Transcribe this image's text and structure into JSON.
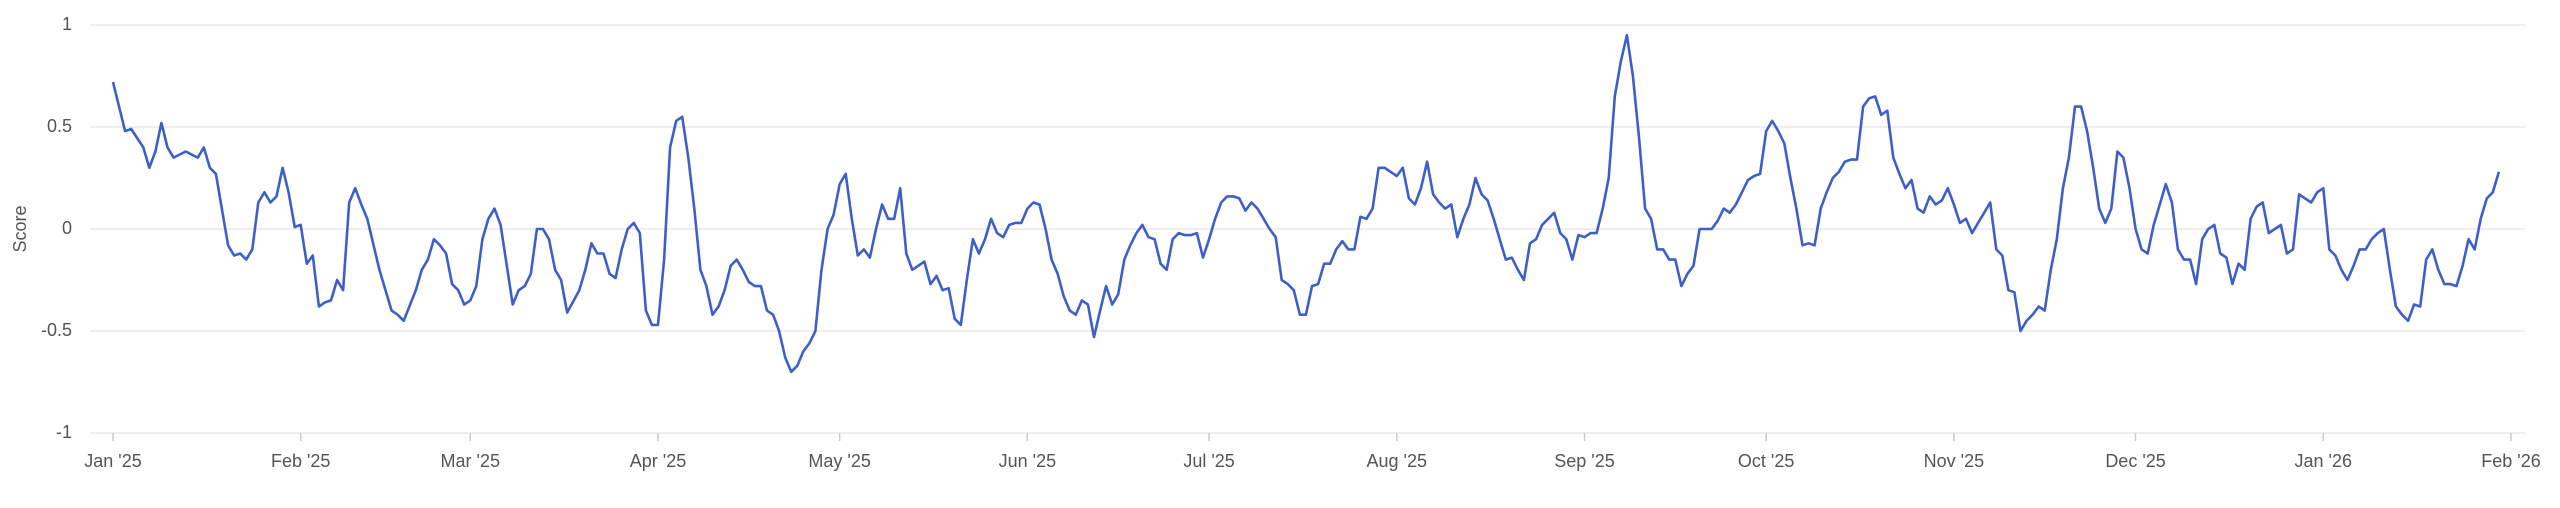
{
  "chart_data": {
    "type": "line",
    "y_label": "Score",
    "color": "#3f5fc8",
    "grid": true,
    "xlim": [
      0,
      396
    ],
    "ylim": [
      -1,
      1
    ],
    "yticks": [
      1,
      0.5,
      0,
      -0.5,
      -1
    ],
    "xticks": [
      {
        "value": 0,
        "label": "Jan '25"
      },
      {
        "value": 31,
        "label": "Feb '25"
      },
      {
        "value": 59,
        "label": "Mar '25"
      },
      {
        "value": 90,
        "label": "Apr '25"
      },
      {
        "value": 120,
        "label": "May '25"
      },
      {
        "value": 151,
        "label": "Jun '25"
      },
      {
        "value": 181,
        "label": "Jul '25"
      },
      {
        "value": 212,
        "label": "Aug '25"
      },
      {
        "value": 243,
        "label": "Sep '25"
      },
      {
        "value": 273,
        "label": "Oct '25"
      },
      {
        "value": 304,
        "label": "Nov '25"
      },
      {
        "value": 334,
        "label": "Dec '25"
      },
      {
        "value": 365,
        "label": "Jan '26"
      },
      {
        "value": 396,
        "label": "Feb '26"
      }
    ],
    "x": [
      0,
      2,
      3,
      5,
      6,
      7,
      8,
      9,
      10,
      12,
      14,
      15,
      16,
      17,
      19,
      20,
      21,
      22,
      23,
      24,
      25,
      26,
      27,
      28,
      29,
      30,
      31,
      32,
      33,
      34,
      35,
      36,
      37,
      38,
      39,
      40,
      41,
      42,
      44,
      46,
      47,
      48,
      50,
      51,
      52,
      53,
      54,
      55,
      56,
      57,
      58,
      59,
      60,
      61,
      62,
      63,
      64,
      66,
      67,
      68,
      69,
      70,
      71,
      72,
      73,
      74,
      75,
      77,
      78,
      79,
      80,
      81,
      82,
      83,
      84,
      85,
      86,
      87,
      88,
      89,
      90,
      91,
      92,
      93,
      94,
      95,
      96,
      97,
      98,
      99,
      100,
      101,
      102,
      103,
      104,
      105,
      106,
      107,
      108,
      109,
      110,
      111,
      112,
      113,
      114,
      115,
      116,
      117,
      118,
      119,
      120,
      121,
      122,
      123,
      124,
      125,
      126,
      127,
      128,
      129,
      130,
      131,
      132,
      133,
      134,
      135,
      136,
      137,
      138,
      139,
      140,
      141,
      142,
      143,
      144,
      145,
      146,
      147,
      148,
      149,
      150,
      151,
      152,
      153,
      154,
      155,
      156,
      157,
      158,
      159,
      160,
      161,
      162,
      163,
      164,
      165,
      166,
      167,
      168,
      169,
      170,
      171,
      172,
      173,
      174,
      175,
      176,
      177,
      178,
      179,
      180,
      181,
      182,
      183,
      184,
      185,
      186,
      187,
      188,
      189,
      190,
      191,
      192,
      193,
      194,
      195,
      196,
      197,
      198,
      199,
      200,
      201,
      202,
      203,
      204,
      205,
      206,
      207,
      208,
      209,
      210,
      211,
      212,
      213,
      214,
      215,
      216,
      217,
      218,
      219,
      220,
      221,
      222,
      223,
      224,
      225,
      226,
      227,
      228,
      229,
      230,
      231,
      232,
      233,
      234,
      235,
      236,
      237,
      238,
      239,
      240,
      241,
      242,
      243,
      244,
      245,
      246,
      247,
      248,
      249,
      250,
      251,
      252,
      253,
      254,
      255,
      256,
      257,
      258,
      259,
      260,
      261,
      262,
      263,
      264,
      265,
      266,
      267,
      268,
      269,
      270,
      271,
      272,
      273,
      274,
      275,
      276,
      277,
      278,
      279,
      280,
      281,
      282,
      283,
      284,
      285,
      286,
      287,
      288,
      289,
      290,
      291,
      292,
      293,
      294,
      295,
      296,
      297,
      298,
      299,
      300,
      301,
      302,
      303,
      304,
      305,
      306,
      307,
      308,
      309,
      310,
      311,
      312,
      313,
      314,
      315,
      316,
      317,
      318,
      319,
      320,
      321,
      322,
      323,
      324,
      325,
      326,
      327,
      328,
      329,
      330,
      331,
      332,
      333,
      334,
      335,
      336,
      337,
      338,
      339,
      340,
      341,
      342,
      343,
      344,
      345,
      346,
      347,
      348,
      349,
      350,
      351,
      352,
      353,
      354,
      355,
      356,
      357,
      358,
      359,
      360,
      361,
      362,
      363,
      364,
      365,
      366,
      367,
      368,
      369,
      370,
      371,
      372,
      373,
      374,
      375,
      376,
      377,
      378,
      379,
      380,
      381,
      382,
      383,
      384,
      385,
      386,
      387,
      388,
      389,
      390,
      391,
      392,
      393,
      394
    ],
    "values": [
      0.72,
      0.48,
      0.49,
      0.4,
      0.3,
      0.38,
      0.52,
      0.4,
      0.35,
      0.38,
      0.35,
      0.4,
      0.3,
      0.27,
      -0.08,
      -0.13,
      -0.12,
      -0.15,
      -0.1,
      0.13,
      0.18,
      0.13,
      0.16,
      0.3,
      0.18,
      0.01,
      0.02,
      -0.17,
      -0.13,
      -0.38,
      -0.36,
      -0.35,
      -0.25,
      -0.3,
      0.13,
      0.2,
      0.12,
      0.05,
      -0.2,
      -0.4,
      -0.42,
      -0.45,
      -0.3,
      -0.2,
      -0.15,
      -0.05,
      -0.08,
      -0.12,
      -0.27,
      -0.3,
      -0.37,
      -0.35,
      -0.28,
      -0.05,
      0.05,
      0.1,
      0.02,
      -0.37,
      -0.3,
      -0.28,
      -0.22,
      0,
      0,
      -0.05,
      -0.2,
      -0.25,
      -0.41,
      -0.3,
      -0.2,
      -0.07,
      -0.12,
      -0.12,
      -0.22,
      -0.24,
      -0.1,
      0,
      0.03,
      -0.02,
      -0.4,
      -0.47,
      -0.47,
      -0.15,
      0.4,
      0.53,
      0.55,
      0.35,
      0.1,
      -0.2,
      -0.28,
      -0.42,
      -0.38,
      -0.3,
      -0.18,
      -0.15,
      -0.2,
      -0.26,
      -0.28,
      -0.28,
      -0.4,
      -0.42,
      -0.5,
      -0.63,
      -0.7,
      -0.67,
      -0.6,
      -0.56,
      -0.5,
      -0.2,
      0,
      0.07,
      0.22,
      0.27,
      0.05,
      -0.13,
      -0.1,
      -0.14,
      0,
      0.12,
      0.05,
      0.05,
      0.2,
      -0.12,
      -0.2,
      -0.18,
      -0.16,
      -0.27,
      -0.23,
      -0.3,
      -0.29,
      -0.44,
      -0.47,
      -0.25,
      -0.05,
      -0.12,
      -0.05,
      0.05,
      -0.02,
      -0.04,
      0.02,
      0.03,
      0.03,
      0.1,
      0.13,
      0.12,
      0,
      -0.15,
      -0.22,
      -0.33,
      -0.4,
      -0.42,
      -0.35,
      -0.37,
      -0.53,
      -0.4,
      -0.28,
      -0.37,
      -0.32,
      -0.15,
      -0.08,
      -0.02,
      0.02,
      -0.04,
      -0.05,
      -0.17,
      -0.2,
      -0.05,
      -0.02,
      -0.03,
      -0.03,
      -0.02,
      -0.14,
      -0.05,
      0.05,
      0.13,
      0.16,
      0.16,
      0.15,
      0.09,
      0.13,
      0.1,
      0.05,
      0,
      -0.04,
      -0.25,
      -0.27,
      -0.3,
      -0.42,
      -0.42,
      -0.28,
      -0.27,
      -0.17,
      -0.17,
      -0.1,
      -0.06,
      -0.1,
      -0.1,
      0.06,
      0.05,
      0.1,
      0.3,
      0.3,
      0.28,
      0.26,
      0.3,
      0.15,
      0.12,
      0.2,
      0.33,
      0.17,
      0.13,
      0.1,
      0.12,
      -0.04,
      0.05,
      0.12,
      0.25,
      0.17,
      0.14,
      0.05,
      -0.05,
      -0.15,
      -0.14,
      -0.2,
      -0.25,
      -0.07,
      -0.05,
      0.02,
      0.05,
      0.08,
      -0.02,
      -0.05,
      -0.15,
      -0.03,
      -0.04,
      -0.02,
      -0.02,
      0.1,
      0.25,
      0.65,
      0.82,
      0.95,
      0.75,
      0.45,
      0.1,
      0.05,
      -0.1,
      -0.1,
      -0.15,
      -0.15,
      -0.28,
      -0.22,
      -0.18,
      0,
      0,
      0,
      0.04,
      0.1,
      0.08,
      0.12,
      0.18,
      0.24,
      0.26,
      0.27,
      0.48,
      0.53,
      0.48,
      0.42,
      0.25,
      0.1,
      -0.08,
      -0.07,
      -0.08,
      0.1,
      0.18,
      0.25,
      0.28,
      0.33,
      0.34,
      0.34,
      0.6,
      0.64,
      0.65,
      0.56,
      0.58,
      0.35,
      0.27,
      0.2,
      0.24,
      0.1,
      0.08,
      0.16,
      0.12,
      0.14,
      0.2,
      0.12,
      0.03,
      0.05,
      -0.02,
      0.03,
      0.08,
      0.13,
      -0.1,
      -0.13,
      -0.3,
      -0.31,
      -0.5,
      -0.45,
      -0.42,
      -0.38,
      -0.4,
      -0.2,
      -0.05,
      0.2,
      0.35,
      0.6,
      0.6,
      0.48,
      0.3,
      0.1,
      0.03,
      0.1,
      0.38,
      0.35,
      0.2,
      0,
      -0.1,
      -0.12,
      0.02,
      0.12,
      0.22,
      0.13,
      -0.1,
      -0.15,
      -0.15,
      -0.27,
      -0.05,
      0,
      0.02,
      -0.12,
      -0.14,
      -0.27,
      -0.17,
      -0.2,
      0.05,
      0.11,
      0.13,
      -0.02,
      0,
      0.02,
      -0.12,
      -0.1,
      0.17,
      0.15,
      0.13,
      0.18,
      0.2,
      -0.1,
      -0.13,
      -0.2,
      -0.25,
      -0.18,
      -0.1,
      -0.1,
      -0.05,
      -0.02,
      0,
      -0.2,
      -0.38,
      -0.42,
      -0.45,
      -0.37,
      -0.38,
      -0.15,
      -0.1,
      -0.2,
      -0.27,
      -0.27,
      -0.28,
      -0.18,
      -0.05,
      -0.1,
      0.05,
      0.15,
      0.18,
      0.28
    ]
  }
}
